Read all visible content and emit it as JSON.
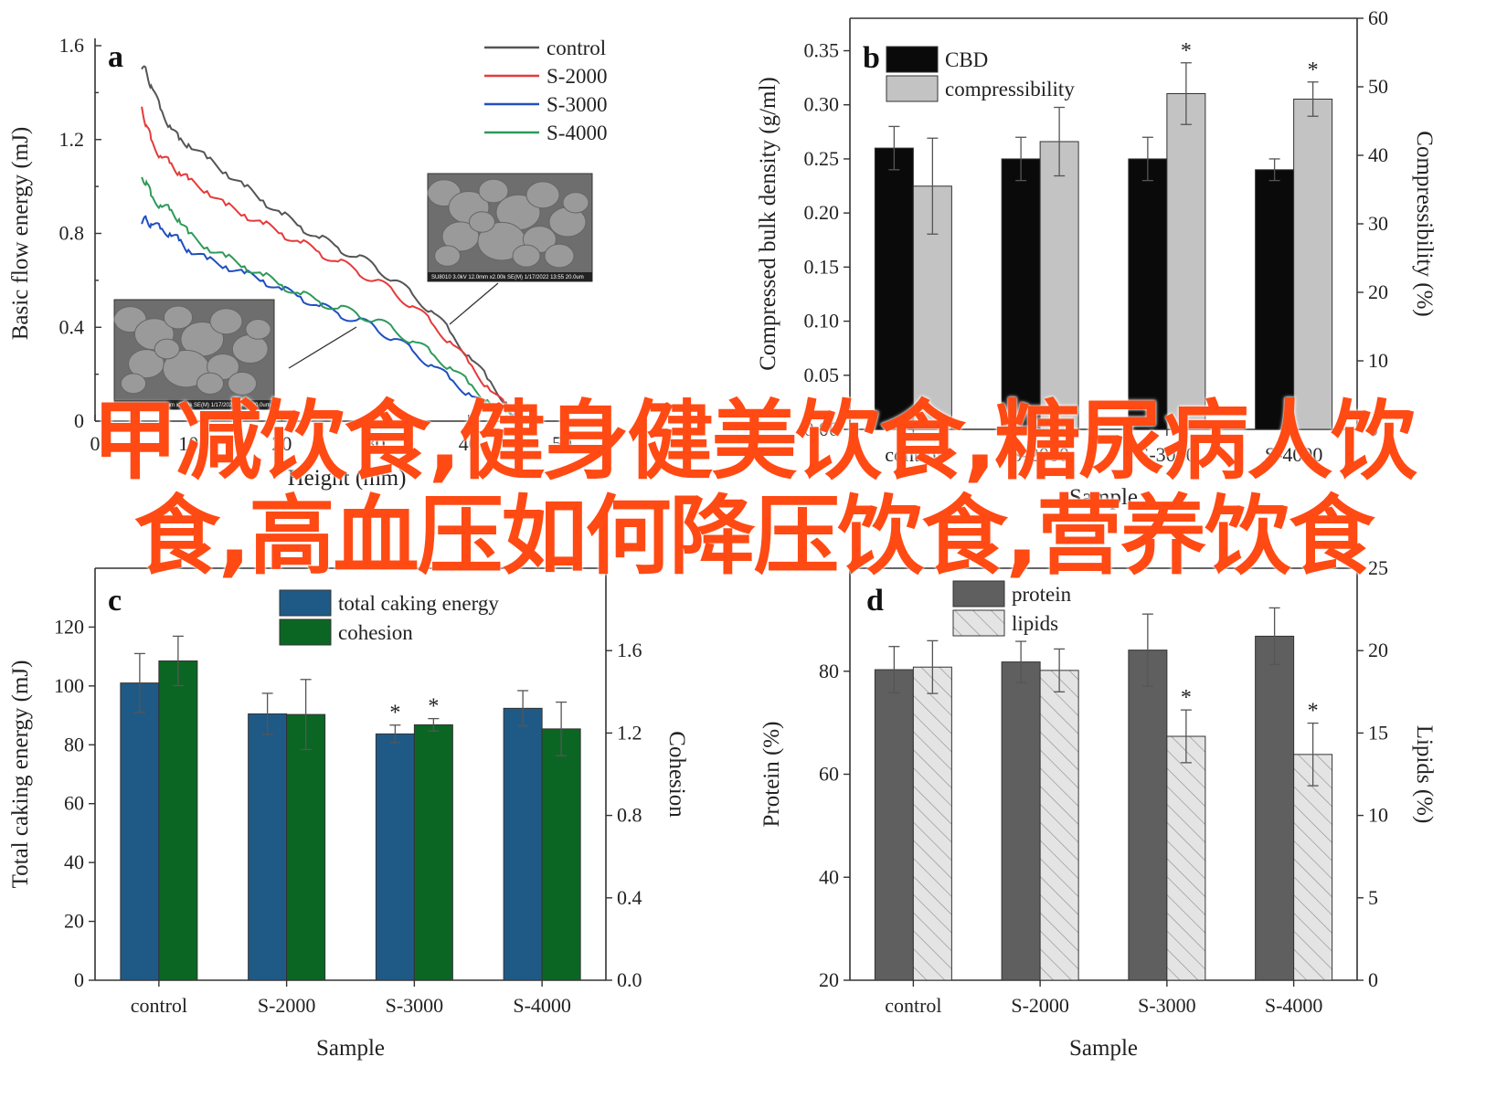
{
  "colors": {
    "control": "#555555",
    "s2000": "#e53a3a",
    "s3000": "#1f4fbf",
    "s4000": "#2e9a5a",
    "cbd": "#0a0a0a",
    "compressibility": "#c3c3c3",
    "total_caking": "#1f5a86",
    "cohesion": "#0b6624",
    "protein": "#5f5f5f",
    "lipids": "#dcdcdc",
    "overlay_text": "#ff4a14"
  },
  "overlay": {
    "text": "甲减饮食,健身健美饮食,糖尿病人饮食,高血压如何降压饮食,营养饮食"
  },
  "panels": {
    "a": {
      "letter": "a"
    },
    "b": {
      "letter": "b"
    },
    "c": {
      "letter": "c"
    },
    "d": {
      "letter": "d"
    }
  },
  "chart_data": [
    {
      "panel": "a",
      "type": "line",
      "xlabel": "Height (mm)",
      "ylabel": "Basic flow energy (mJ)",
      "xlim": [
        0,
        50
      ],
      "ylim": [
        0,
        1.6
      ],
      "xticks": [
        "0",
        "10",
        "20",
        "30",
        "40",
        "50"
      ],
      "yticks": [
        "0",
        "0.4",
        "0.8",
        "1.2",
        "1.6"
      ],
      "legend_position": "top-right",
      "series": [
        {
          "name": "control",
          "x": [
            5,
            5.5,
            6,
            7,
            8,
            9,
            10,
            12,
            14,
            16,
            18,
            20,
            22,
            24,
            26,
            28,
            30,
            32,
            34,
            36,
            38,
            40,
            42,
            44,
            45
          ],
          "y": [
            1.5,
            1.49,
            1.43,
            1.33,
            1.26,
            1.2,
            1.18,
            1.12,
            1.06,
            1.0,
            0.94,
            0.88,
            0.83,
            0.78,
            0.74,
            0.7,
            0.66,
            0.6,
            0.54,
            0.47,
            0.38,
            0.28,
            0.18,
            0.08,
            0.02
          ]
        },
        {
          "name": "S-2000",
          "x": [
            5,
            5.5,
            6,
            7,
            8,
            9,
            10,
            12,
            14,
            16,
            18,
            20,
            22,
            24,
            26,
            28,
            30,
            32,
            34,
            36,
            38,
            40,
            42,
            44,
            45
          ],
          "y": [
            1.34,
            1.26,
            1.2,
            1.13,
            1.1,
            1.06,
            1.03,
            0.98,
            0.92,
            0.88,
            0.84,
            0.8,
            0.76,
            0.72,
            0.68,
            0.64,
            0.6,
            0.55,
            0.49,
            0.42,
            0.34,
            0.25,
            0.15,
            0.06,
            0.02
          ]
        },
        {
          "name": "S-3000",
          "x": [
            5,
            5.5,
            6,
            7,
            8,
            9,
            10,
            12,
            14,
            16,
            18,
            20,
            22,
            24,
            26,
            28,
            30,
            32,
            34,
            36,
            38,
            40,
            42,
            44,
            45
          ],
          "y": [
            0.84,
            0.86,
            0.84,
            0.82,
            0.8,
            0.77,
            0.73,
            0.69,
            0.66,
            0.63,
            0.6,
            0.56,
            0.53,
            0.49,
            0.46,
            0.43,
            0.4,
            0.35,
            0.3,
            0.24,
            0.18,
            0.12,
            0.06,
            0.02,
            0.01
          ]
        },
        {
          "name": "S-4000",
          "x": [
            5,
            5.5,
            6,
            7,
            8,
            9,
            10,
            12,
            14,
            16,
            18,
            20,
            22,
            24,
            26,
            28,
            30,
            32,
            34,
            36,
            38,
            40,
            42,
            44,
            45
          ],
          "y": [
            1.04,
            1.02,
            0.96,
            0.92,
            0.9,
            0.86,
            0.8,
            0.74,
            0.7,
            0.66,
            0.62,
            0.58,
            0.54,
            0.51,
            0.48,
            0.46,
            0.43,
            0.39,
            0.34,
            0.29,
            0.23,
            0.16,
            0.09,
            0.04,
            0.02
          ]
        }
      ],
      "sem_label": "SU8010 3.0kV 12.0mm x2.00k SE(M) 1/17/2022 13:55  20.0um"
    },
    {
      "panel": "b",
      "type": "bar",
      "categories": [
        "control",
        "S-2000",
        "S-3000",
        "S-4000"
      ],
      "xlabel": "Sample",
      "ylabel": "Compressed bulk density (g/ml)",
      "ylabel_right": "Compressibility (%)",
      "ylim": [
        0,
        0.38
      ],
      "ylim_right": [
        0,
        60
      ],
      "yticks": [
        "0.00",
        "0.05",
        "0.10",
        "0.15",
        "0.20",
        "0.25",
        "0.30",
        "0.35"
      ],
      "yticks_right": [
        "0",
        "10",
        "20",
        "30",
        "40",
        "50",
        "60"
      ],
      "legend_position": "top-left",
      "series": [
        {
          "name": "CBD",
          "axis": "left",
          "values": [
            0.26,
            0.25,
            0.25,
            0.24
          ],
          "errors": [
            0.02,
            0.02,
            0.02,
            0.01
          ]
        },
        {
          "name": "compressibility",
          "axis": "right",
          "values": [
            35.5,
            42,
            49,
            48.2
          ],
          "errors": [
            7,
            5,
            4.5,
            2.5
          ],
          "significant": [
            false,
            false,
            true,
            true
          ]
        }
      ],
      "star": "*"
    },
    {
      "panel": "c",
      "type": "bar",
      "categories": [
        "control",
        "S-2000",
        "S-3000",
        "S-4000"
      ],
      "xlabel": "Sample",
      "ylabel": "Total caking energy (mJ)",
      "ylabel_right": "Cohesion",
      "ylim": [
        0,
        140
      ],
      "ylim_right": [
        0.0,
        2.0
      ],
      "yticks": [
        "0",
        "20",
        "40",
        "60",
        "80",
        "100",
        "120"
      ],
      "yticks_right": [
        "0.0",
        "0.4",
        "0.8",
        "1.2",
        "1.6"
      ],
      "legend_position": "top-center",
      "series": [
        {
          "name": "total caking energy",
          "axis": "left",
          "values": [
            101,
            90.5,
            83.7,
            92.4
          ],
          "errors": [
            10,
            7,
            3,
            6
          ],
          "significant": [
            false,
            false,
            true,
            false
          ]
        },
        {
          "name": "cohesion",
          "axis": "right",
          "values": [
            1.55,
            1.29,
            1.24,
            1.22
          ],
          "errors": [
            0.12,
            0.17,
            0.03,
            0.13
          ],
          "significant": [
            false,
            false,
            true,
            false
          ]
        }
      ],
      "star": "*"
    },
    {
      "panel": "d",
      "type": "bar",
      "categories": [
        "control",
        "S-2000",
        "S-3000",
        "S-4000"
      ],
      "xlabel": "Sample",
      "ylabel": "Protein (%)",
      "ylabel_right": "Lipids (%)",
      "ylim": [
        20,
        100
      ],
      "ylim_right": [
        0,
        25
      ],
      "yticks": [
        "20",
        "40",
        "60",
        "80"
      ],
      "yticks_right": [
        "0",
        "5",
        "10",
        "15",
        "20",
        "25"
      ],
      "legend_position": "top-left",
      "series": [
        {
          "name": "protein",
          "axis": "left",
          "values": [
            80.3,
            81.8,
            84.1,
            86.8
          ],
          "errors": [
            4.5,
            4,
            7,
            5.5
          ]
        },
        {
          "name": "lipids",
          "axis": "right",
          "values": [
            19.0,
            18.8,
            14.8,
            13.7
          ],
          "errors": [
            1.6,
            1.3,
            1.6,
            1.9
          ],
          "significant": [
            false,
            false,
            true,
            true
          ]
        }
      ],
      "star": "*"
    }
  ]
}
